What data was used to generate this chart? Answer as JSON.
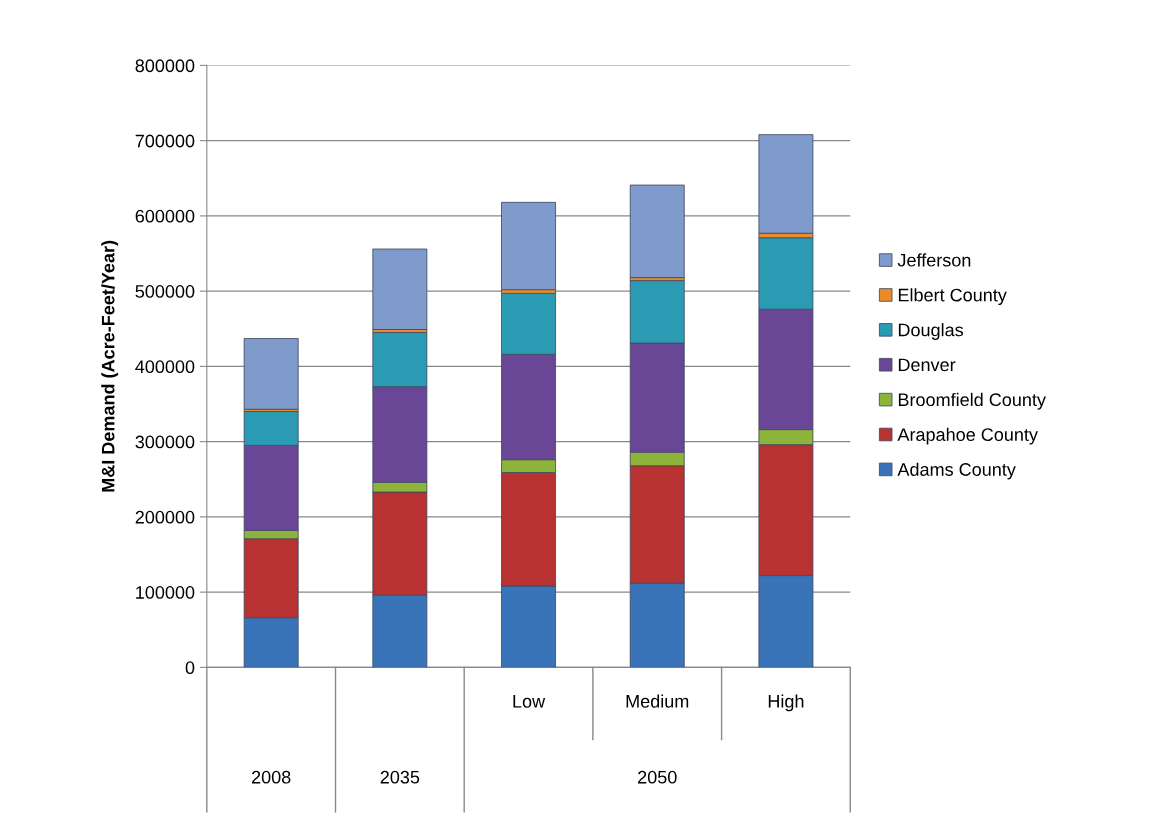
{
  "chart_data": {
    "type": "bar",
    "stacked": true,
    "ylabel": "M&I Demand (Acre-Feet/Year)",
    "categories": [
      null,
      null,
      "Low",
      "Medium",
      "High"
    ],
    "annotations": [
      "2008",
      "2035",
      "2050"
    ],
    "series": [
      {
        "name": "Adams County",
        "color": "#3a74b8",
        "values": [
          66000,
          96000,
          108000,
          112000,
          122000
        ]
      },
      {
        "name": "Arapahoe County",
        "color": "#b83232",
        "values": [
          105000,
          137000,
          151000,
          156000,
          174000
        ]
      },
      {
        "name": "Broomfield County",
        "color": "#8db33a",
        "values": [
          11000,
          13000,
          17000,
          18000,
          20000
        ]
      },
      {
        "name": "Denver",
        "color": "#6a4796",
        "values": [
          113000,
          127000,
          140000,
          145000,
          160000
        ]
      },
      {
        "name": "Douglas",
        "color": "#2a9bb2",
        "values": [
          45000,
          72000,
          81000,
          83000,
          95000
        ]
      },
      {
        "name": "Elbert County",
        "color": "#e98b2a",
        "values": [
          3000,
          4000,
          5000,
          4000,
          6000
        ]
      },
      {
        "name": "Jefferson",
        "color": "#7f9bcc",
        "values": [
          94000,
          107000,
          116000,
          123000,
          131000
        ]
      }
    ],
    "ylim": [
      0,
      800000
    ],
    "yticks": [
      0,
      100000,
      200000,
      300000,
      400000,
      500000,
      600000,
      700000,
      800000
    ],
    "grid": "y",
    "legend": "right"
  }
}
